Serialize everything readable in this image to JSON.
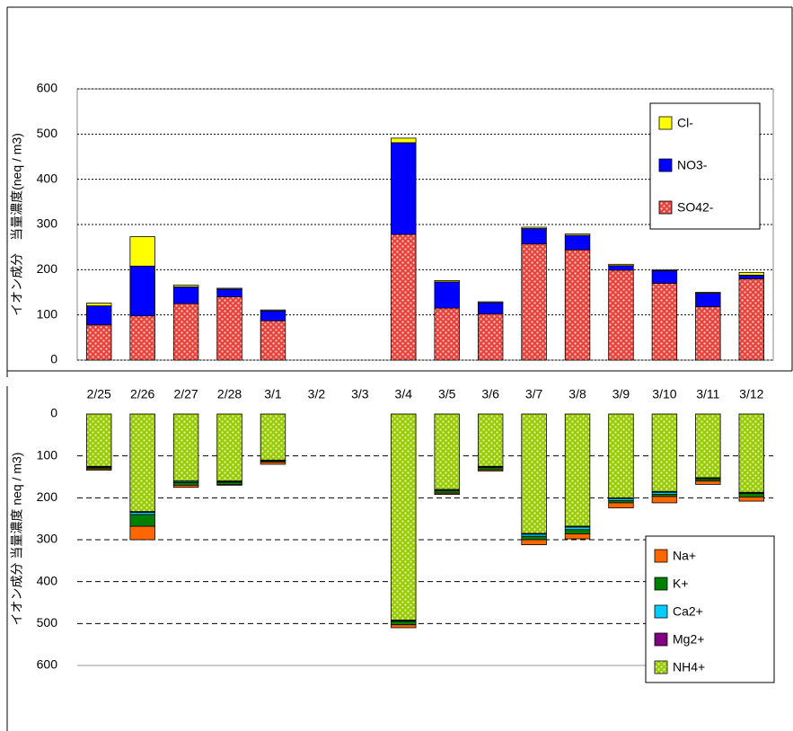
{
  "chart_data": [
    {
      "type": "bar",
      "stacked": true,
      "y_label": "イオン成分　当量濃度(neq / m3)",
      "categories": [
        "2/25",
        "2/26",
        "2/27",
        "2/28",
        "3/1",
        "3/2",
        "3/3",
        "3/4",
        "3/5",
        "3/6",
        "3/7",
        "3/8",
        "3/9",
        "3/10",
        "3/11",
        "3/12"
      ],
      "series": [
        {
          "name": "SO42-",
          "color": "#e8423a",
          "pattern": "dots",
          "values": [
            78,
            98,
            125,
            140,
            87,
            null,
            null,
            278,
            115,
            102,
            257,
            244,
            199,
            170,
            118,
            180
          ]
        },
        {
          "name": "NO3-",
          "color": "#0000ff",
          "values": [
            42,
            110,
            37,
            17,
            22,
            null,
            null,
            203,
            58,
            25,
            34,
            32,
            10,
            28,
            30,
            8
          ]
        },
        {
          "name": "Cl-",
          "color": "#ffff00",
          "values": [
            6,
            65,
            4,
            2,
            2,
            null,
            null,
            10,
            3,
            2,
            3,
            3,
            3,
            2,
            2,
            6
          ]
        }
      ],
      "ylim": [
        0,
        600
      ],
      "yticks": [
        0,
        100,
        200,
        300,
        400,
        500,
        600
      ],
      "grid": "dotted",
      "legend": "upper right"
    },
    {
      "type": "bar",
      "stacked": true,
      "y_inverted": true,
      "y_label": "イオン成分 当量濃度 neq / m3)",
      "series": [
        {
          "name": "NH4+",
          "color": "#99cc00",
          "pattern": "dots",
          "values": [
            125,
            233,
            160,
            160,
            110,
            null,
            null,
            492,
            180,
            125,
            285,
            268,
            200,
            185,
            152,
            187
          ]
        },
        {
          "name": "Mg2+",
          "color": "#800080",
          "values": [
            1,
            2,
            1,
            1,
            1,
            null,
            null,
            1,
            1,
            1,
            2,
            2,
            2,
            2,
            1,
            1
          ]
        },
        {
          "name": "Ca2+",
          "color": "#00ccff",
          "values": [
            2,
            5,
            3,
            2,
            1,
            null,
            null,
            2,
            2,
            2,
            5,
            6,
            5,
            5,
            2,
            2
          ]
        },
        {
          "name": "K+",
          "color": "#008000",
          "values": [
            3,
            28,
            6,
            5,
            3,
            null,
            null,
            8,
            6,
            5,
            8,
            10,
            5,
            5,
            5,
            8
          ]
        },
        {
          "name": "Na+",
          "color": "#ff6600",
          "values": [
            3,
            32,
            5,
            2,
            5,
            null,
            null,
            7,
            3,
            3,
            12,
            12,
            12,
            15,
            8,
            10
          ]
        }
      ],
      "ylim": [
        0,
        600
      ],
      "yticks": [
        0,
        100,
        200,
        300,
        400,
        500,
        600
      ],
      "grid": "dashed",
      "legend": "lower right"
    }
  ]
}
